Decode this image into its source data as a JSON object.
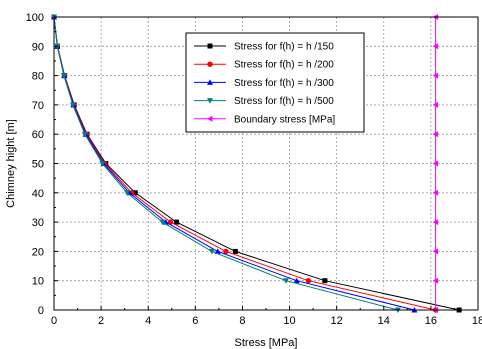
{
  "chart_data": {
    "type": "line",
    "title": "",
    "xlabel": "Stress [MPa]",
    "ylabel": "Chimney hight [m]",
    "xlim": [
      0,
      18
    ],
    "ylim": [
      0,
      100
    ],
    "x_ticks": [
      "0",
      "2",
      "4",
      "6",
      "8",
      "10",
      "12",
      "14",
      "16",
      "18"
    ],
    "y_ticks": [
      "0",
      "10",
      "20",
      "30",
      "40",
      "50",
      "60",
      "70",
      "80",
      "90",
      "100"
    ],
    "grid": true,
    "legend_position": "top-right",
    "y": [
      100,
      90,
      80,
      70,
      60,
      50,
      40,
      30,
      20,
      10,
      0
    ],
    "series": [
      {
        "name": "Stress for f(h) = h /150",
        "color": "#000000",
        "marker": "square",
        "values": [
          0.0,
          0.15,
          0.45,
          0.86,
          1.4,
          2.2,
          3.45,
          5.2,
          7.7,
          11.5,
          17.2
        ]
      },
      {
        "name": "Stress for f(h) = h /200",
        "color": "#ff0000",
        "marker": "circle",
        "values": [
          0.0,
          0.15,
          0.44,
          0.84,
          1.37,
          2.15,
          3.3,
          4.95,
          7.3,
          10.8,
          16.2
        ]
      },
      {
        "name": "Stress for f(h) = h /300",
        "color": "#0000ff",
        "marker": "triangle-up",
        "values": [
          0.0,
          0.14,
          0.43,
          0.82,
          1.34,
          2.1,
          3.2,
          4.75,
          6.95,
          10.3,
          15.3
        ]
      },
      {
        "name": "Stress for f(h) = h /500",
        "color": "#008080",
        "marker": "triangle-down",
        "values": [
          0.0,
          0.14,
          0.42,
          0.8,
          1.31,
          2.05,
          3.1,
          4.6,
          6.7,
          9.85,
          14.6
        ]
      },
      {
        "name": "Boundary stress [MPa]",
        "color": "#ff00ff",
        "marker": "triangle-left",
        "values": [
          16.2,
          16.2,
          16.2,
          16.2,
          16.2,
          16.2,
          16.2,
          16.2,
          16.2,
          16.2,
          16.2
        ]
      }
    ]
  }
}
